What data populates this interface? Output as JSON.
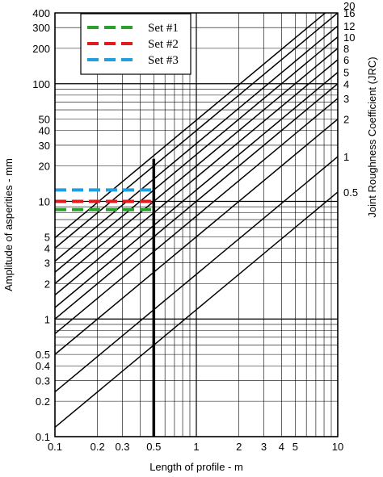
{
  "chart_data": {
    "type": "line",
    "title": "",
    "xlabel": "Length of profile - m",
    "ylabel": "Amplitude of asperities - mm",
    "y2label": "Joint Roughness Coefficient (JRC)",
    "x_scale": "log",
    "y_scale": "log",
    "xlim": [
      0.1,
      10
    ],
    "ylim": [
      0.1,
      400
    ],
    "grid": true,
    "legend_position": "top-left",
    "x_tick_labels": [
      "0.1",
      "0.2",
      "0.3",
      "0.5",
      "1",
      "2",
      "3",
      "4",
      "5",
      "10"
    ],
    "x_tick_values": [
      0.1,
      0.2,
      0.3,
      0.5,
      1,
      2,
      3,
      4,
      5,
      10
    ],
    "y_tick_labels": [
      "0.1",
      "0.2",
      "0.3",
      "0.4",
      "0.5",
      "1",
      "2",
      "3",
      "4",
      "5",
      "10",
      "20",
      "30",
      "40",
      "50",
      "100",
      "200",
      "300",
      "400"
    ],
    "y_tick_values": [
      0.1,
      0.2,
      0.3,
      0.4,
      0.5,
      1,
      2,
      3,
      4,
      5,
      10,
      20,
      30,
      40,
      50,
      100,
      200,
      300,
      400
    ],
    "jrc_lines": [
      {
        "label": "0.5",
        "jrc": 0.5,
        "points": [
          [
            0.1,
            0.12
          ],
          [
            10,
            12
          ]
        ]
      },
      {
        "label": "1",
        "jrc": 1,
        "points": [
          [
            0.1,
            0.24
          ],
          [
            10,
            24
          ]
        ]
      },
      {
        "label": "2",
        "jrc": 2,
        "points": [
          [
            0.1,
            0.5
          ],
          [
            10,
            50
          ]
        ]
      },
      {
        "label": "3",
        "jrc": 3,
        "points": [
          [
            0.1,
            0.75
          ],
          [
            10,
            75
          ]
        ]
      },
      {
        "label": "4",
        "jrc": 4,
        "points": [
          [
            0.1,
            1.0
          ],
          [
            10,
            100
          ]
        ]
      },
      {
        "label": "5",
        "jrc": 5,
        "points": [
          [
            0.1,
            1.25
          ],
          [
            10,
            125
          ]
        ]
      },
      {
        "label": "6",
        "jrc": 6,
        "points": [
          [
            0.1,
            1.6
          ],
          [
            10,
            160
          ]
        ]
      },
      {
        "label": "8",
        "jrc": 8,
        "points": [
          [
            0.1,
            2.0
          ],
          [
            10,
            200
          ]
        ]
      },
      {
        "label": "10",
        "jrc": 10,
        "points": [
          [
            0.1,
            2.5
          ],
          [
            10,
            250
          ]
        ]
      },
      {
        "label": "12",
        "jrc": 12,
        "points": [
          [
            0.1,
            3.1
          ],
          [
            10,
            310
          ]
        ]
      },
      {
        "label": "16",
        "jrc": 16,
        "points": [
          [
            0.1,
            4.0
          ],
          [
            10,
            400
          ]
        ]
      },
      {
        "label": "20",
        "jrc": 20,
        "points": [
          [
            0.1,
            4.9
          ],
          [
            10,
            490
          ]
        ]
      }
    ],
    "series": [
      {
        "name": "Set #1",
        "color": "#2ca02c",
        "x": [
          0.1,
          0.5
        ],
        "y": [
          8.5,
          8.5
        ]
      },
      {
        "name": "Set #2",
        "color": "#e31a1c",
        "x": [
          0.1,
          0.5
        ],
        "y": [
          10,
          10
        ]
      },
      {
        "name": "Set #3",
        "color": "#1f9fe0",
        "x": [
          0.1,
          0.5
        ],
        "y": [
          12.5,
          12.5
        ]
      }
    ],
    "marker_line": {
      "x": 0.5,
      "y_range": [
        0.1,
        23
      ]
    }
  }
}
